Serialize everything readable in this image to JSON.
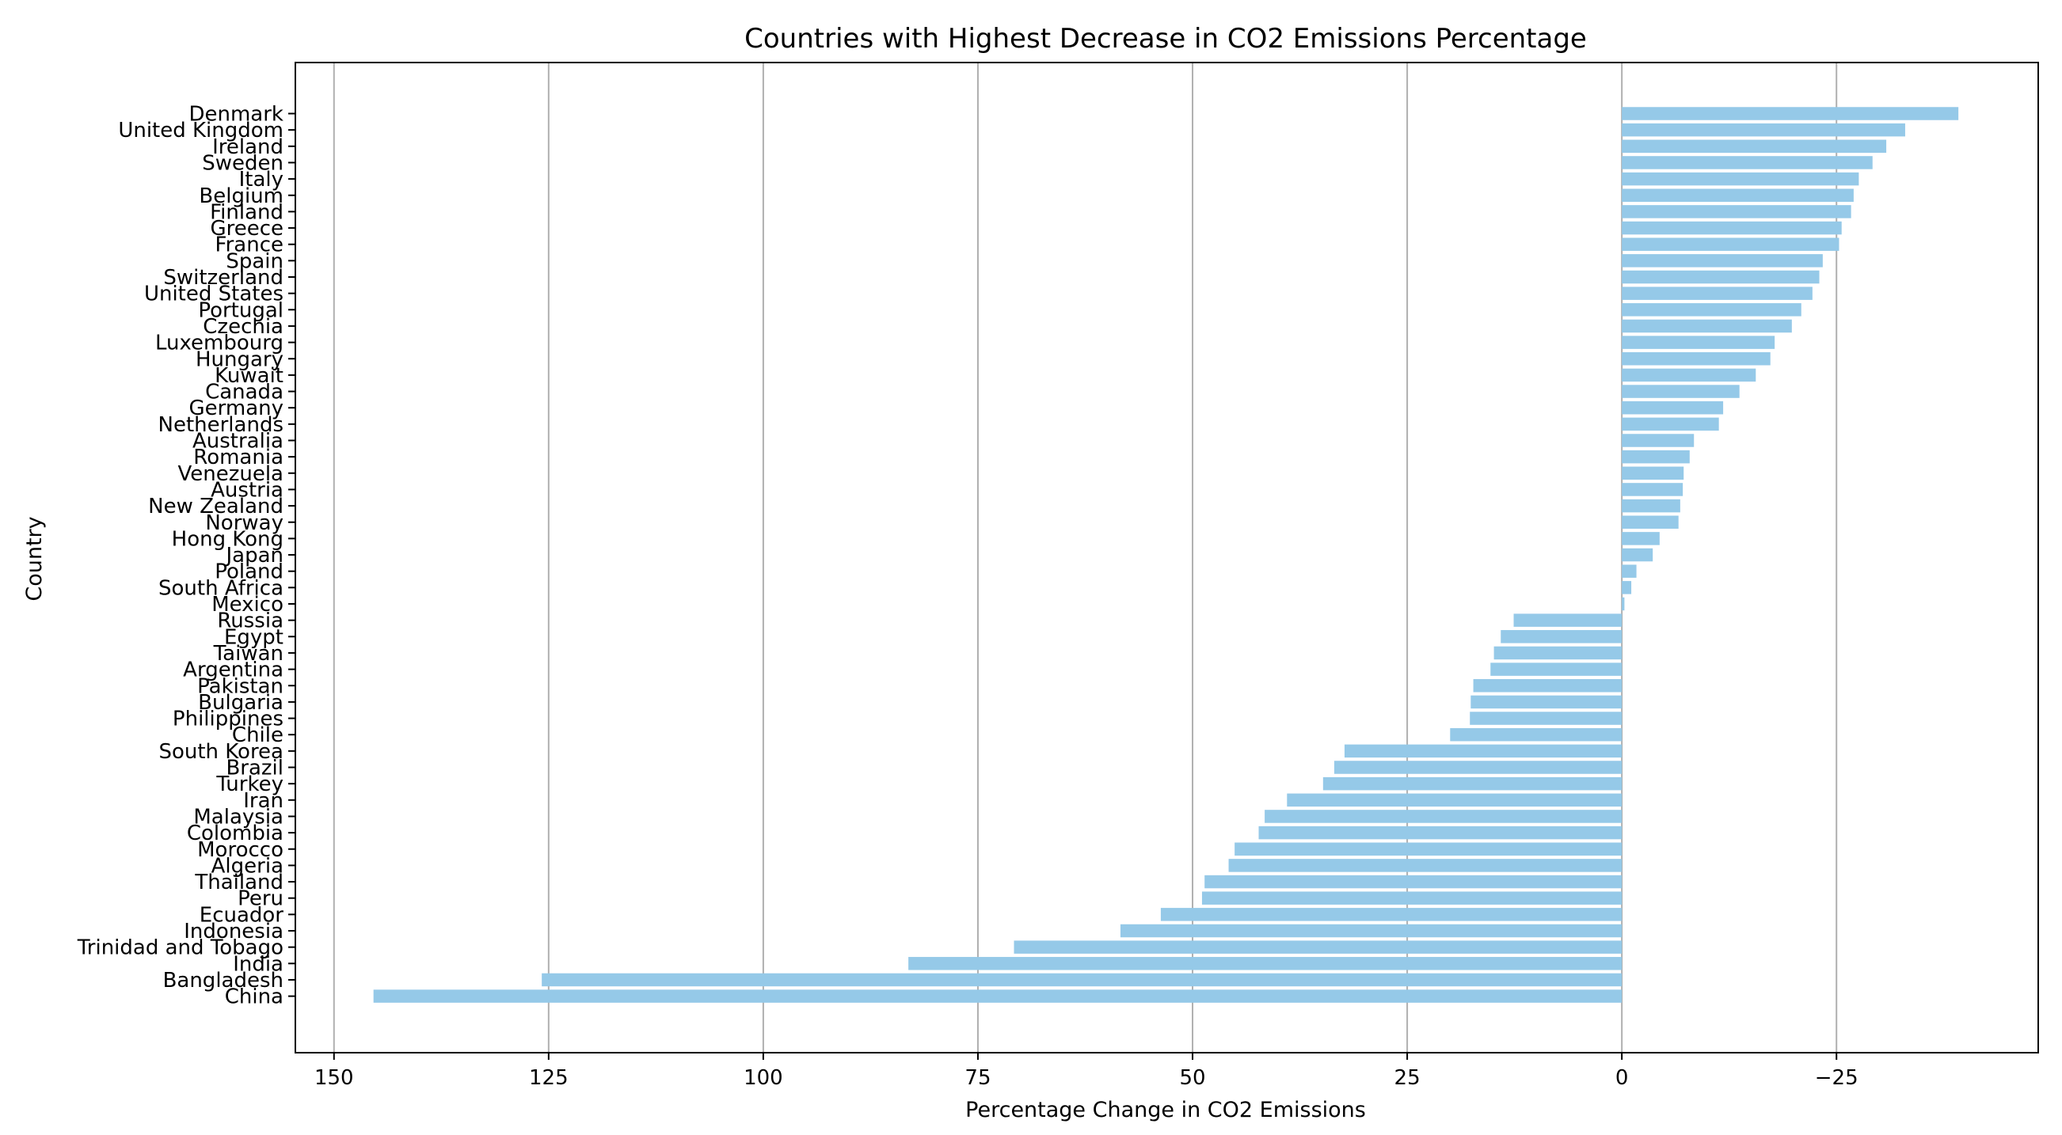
{
  "chart_data": {
    "type": "bar",
    "orientation": "horizontal",
    "title": "Countries with Highest Decrease in CO2 Emissions Percentage",
    "xlabel": "Percentage Change in CO2 Emissions",
    "ylabel": "Country",
    "x_axis_inverted": true,
    "xlim": [
      154.5,
      -48.5
    ],
    "xticks": [
      150,
      125,
      100,
      75,
      50,
      25,
      0,
      -25
    ],
    "xtick_labels": [
      "150",
      "125",
      "100",
      "75",
      "50",
      "25",
      "0",
      "−25"
    ],
    "grid": "x-major",
    "bar_color": "#95c9e8",
    "categories": [
      "Denmark",
      "United Kingdom",
      "Ireland",
      "Sweden",
      "Italy",
      "Belgium",
      "Finland",
      "Greece",
      "France",
      "Spain",
      "Switzerland",
      "United States",
      "Portugal",
      "Czechia",
      "Luxembourg",
      "Hungary",
      "Kuwait",
      "Canada",
      "Germany",
      "Netherlands",
      "Australia",
      "Romania",
      "Venezuela",
      "Austria",
      "New Zealand",
      "Norway",
      "Hong Kong",
      "Japan",
      "Poland",
      "South Africa",
      "Mexico",
      "Russia",
      "Egypt",
      "Taiwan",
      "Argentina",
      "Pakistan",
      "Bulgaria",
      "Philippines",
      "Chile",
      "South Korea",
      "Brazil",
      "Turkey",
      "Iran",
      "Malaysia",
      "Colombia",
      "Morocco",
      "Algeria",
      "Thailand",
      "Peru",
      "Ecuador",
      "Indonesia",
      "Trinidad and Tobago",
      "India",
      "Bangladesh",
      "China"
    ],
    "values": [
      -39.2,
      -33.0,
      -30.8,
      -29.2,
      -27.6,
      -27.0,
      -26.7,
      -25.6,
      -25.3,
      -23.4,
      -23.0,
      -22.2,
      -20.9,
      -19.8,
      -17.8,
      -17.3,
      -15.6,
      -13.7,
      -11.8,
      -11.3,
      -8.4,
      -7.9,
      -7.2,
      -7.1,
      -6.8,
      -6.6,
      -4.4,
      -3.6,
      -1.7,
      -1.1,
      -0.3,
      12.6,
      14.1,
      14.9,
      15.3,
      17.3,
      17.6,
      17.7,
      20.0,
      32.3,
      33.5,
      34.8,
      39.0,
      41.6,
      42.3,
      45.1,
      45.8,
      48.6,
      48.9,
      53.7,
      58.4,
      70.8,
      83.1,
      125.8,
      145.4
    ]
  }
}
